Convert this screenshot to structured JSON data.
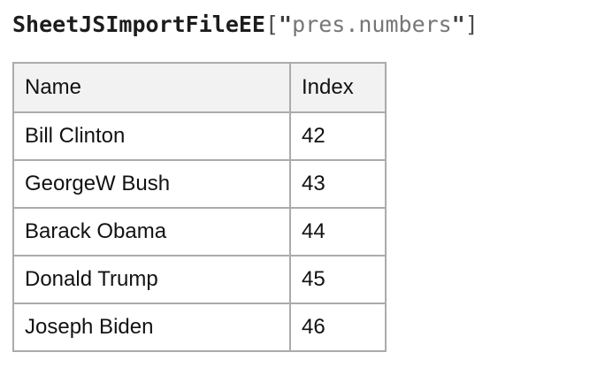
{
  "page": {
    "background": "#ffffff"
  },
  "title": {
    "function_name": "SheetJSImportFileEE",
    "open_bracket": "[",
    "open_quote": "\"",
    "string_value": "pres.numbers",
    "close_quote": "\"",
    "close_bracket": "]",
    "colors": {
      "function_name": "#1c1c1c",
      "bracket": "#4a4a4a",
      "quote": "#3d3d3d",
      "string": "#767676"
    }
  },
  "table": {
    "columns": [
      "Name",
      "Index"
    ],
    "rows": [
      {
        "name": "Bill Clinton",
        "index": "42"
      },
      {
        "name": "GeorgeW Bush",
        "index": "43"
      },
      {
        "name": "Barack Obama",
        "index": "44"
      },
      {
        "name": "Donald Trump",
        "index": "45"
      },
      {
        "name": "Joseph Biden",
        "index": "46"
      }
    ],
    "colors": {
      "border": "#ababab",
      "header_background": "#f2f2f2",
      "body_background": "#ffffff",
      "text": "#121212"
    }
  }
}
